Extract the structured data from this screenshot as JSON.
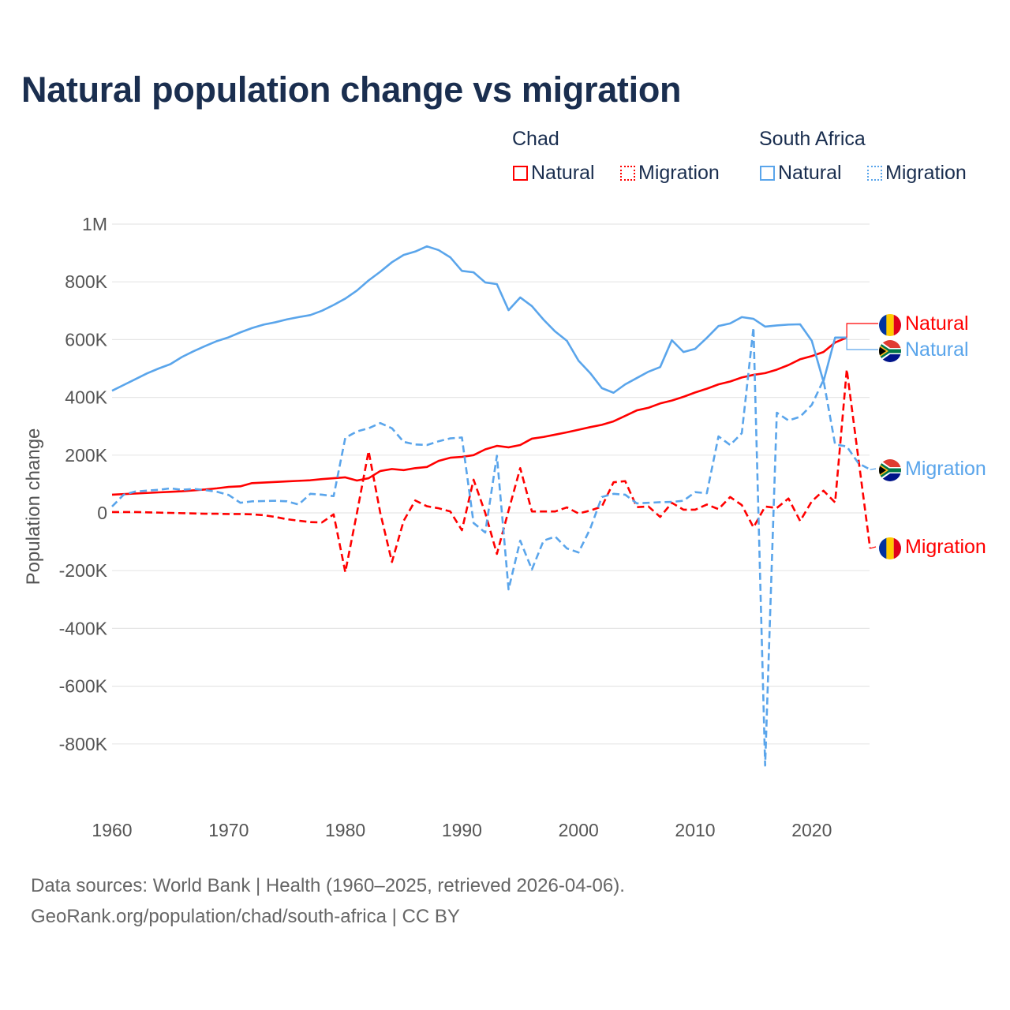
{
  "chart_data": {
    "type": "line",
    "title": "Natural population change vs migration",
    "xlabel": "",
    "ylabel": "Population change",
    "xlim": [
      1960,
      2025
    ],
    "ylim": [
      -1000000,
      1000000
    ],
    "grid": true,
    "legend_position": "top-right",
    "x_ticks": [
      1960,
      1970,
      1980,
      1990,
      2000,
      2010,
      2020
    ],
    "x_tick_labels": [
      "1960",
      "1970",
      "1980",
      "1990",
      "2000",
      "2010",
      "2020"
    ],
    "y_ticks": [
      1000000,
      800000,
      600000,
      400000,
      200000,
      0,
      -200000,
      -400000,
      -600000,
      -800000
    ],
    "y_tick_labels": [
      "1M",
      "800K",
      "600K",
      "400K",
      "200K",
      "0",
      "-200K",
      "-400K",
      "-600K",
      "-800K"
    ],
    "legend": {
      "groups": [
        {
          "name": "Chad",
          "items": [
            "Natural",
            "Migration"
          ]
        },
        {
          "name": "South Africa",
          "items": [
            "Natural",
            "Migration"
          ]
        }
      ]
    },
    "series": [
      {
        "name": "Chad Natural",
        "country": "Chad",
        "kind": "Natural",
        "label": "Natural",
        "color": "#ff0000",
        "dashed": false,
        "flag": "chad",
        "start_year": 1960,
        "values_thousands": [
          63,
          65,
          67,
          69,
          71,
          73,
          75,
          78,
          81,
          85,
          90,
          92,
          103,
          105,
          107,
          109,
          111,
          113,
          117,
          120,
          123,
          112,
          120,
          145,
          152,
          148,
          155,
          159,
          180,
          191,
          194,
          200,
          220,
          232,
          227,
          235,
          257,
          263,
          271,
          279,
          288,
          297,
          305,
          317,
          336,
          355,
          364,
          379,
          389,
          402,
          417,
          430,
          445,
          455,
          469,
          478,
          484,
          496,
          512,
          532,
          543,
          557,
          590,
          607
        ]
      },
      {
        "name": "Chad Migration",
        "country": "Chad",
        "kind": "Migration",
        "label": "Migration",
        "color": "#ff0000",
        "dashed": true,
        "flag": "chad",
        "start_year": 1960,
        "values_thousands": [
          3,
          3,
          3,
          2,
          1,
          0,
          -1,
          -2,
          -3,
          -3,
          -4,
          -4,
          -5,
          -8,
          -14,
          -22,
          -27,
          -32,
          -33,
          -5,
          -205,
          0,
          214,
          0,
          -170,
          -28,
          43,
          23,
          16,
          5,
          -60,
          115,
          0,
          -142,
          8,
          155,
          5,
          5,
          5,
          19,
          -2,
          8,
          22,
          106,
          110,
          20,
          22,
          -14,
          35,
          11,
          11,
          29,
          13,
          55,
          27,
          -50,
          22,
          17,
          50,
          -28,
          40,
          77,
          36,
          497,
          187,
          -123
        ]
      },
      {
        "name": "South Africa Natural",
        "country": "South Africa",
        "kind": "Natural",
        "label": "Natural",
        "color": "#5aa5eb",
        "dashed": false,
        "flag": "south-africa",
        "start_year": 1960,
        "values_thousands": [
          423,
          443,
          463,
          483,
          500,
          515,
          540,
          560,
          578,
          595,
          608,
          625,
          640,
          652,
          660,
          670,
          678,
          685,
          700,
          720,
          742,
          770,
          805,
          835,
          868,
          893,
          905,
          923,
          910,
          885,
          838,
          833,
          798,
          792,
          702,
          746,
          716,
          669,
          628,
          596,
          527,
          484,
          432,
          416,
          445,
          467,
          489,
          505,
          598,
          557,
          568,
          606,
          647,
          656,
          678,
          672,
          645,
          649,
          652,
          653,
          596,
          455,
          607,
          607
        ]
      },
      {
        "name": "South Africa Migration",
        "country": "South Africa",
        "kind": "Migration",
        "label": "Migration",
        "color": "#5aa5eb",
        "dashed": true,
        "flag": "south-africa",
        "start_year": 1960,
        "values_thousands": [
          22,
          63,
          74,
          77,
          80,
          85,
          80,
          83,
          79,
          73,
          62,
          35,
          40,
          41,
          42,
          40,
          29,
          66,
          63,
          58,
          260,
          282,
          293,
          311,
          293,
          246,
          237,
          235,
          248,
          258,
          261,
          -35,
          -68,
          198,
          -265,
          -96,
          -196,
          -96,
          -82,
          -123,
          -137,
          -55,
          55,
          66,
          63,
          33,
          35,
          37,
          38,
          42,
          72,
          68,
          265,
          235,
          276,
          642,
          -875,
          347,
          320,
          333,
          374,
          460,
          237,
          230,
          172,
          150
        ]
      }
    ]
  },
  "footer": {
    "line1": "Data sources: World Bank | Health (1960–2025, retrieved 2026-04-06).",
    "line2": "GeoRank.org/population/chad/south-africa | CC BY"
  }
}
